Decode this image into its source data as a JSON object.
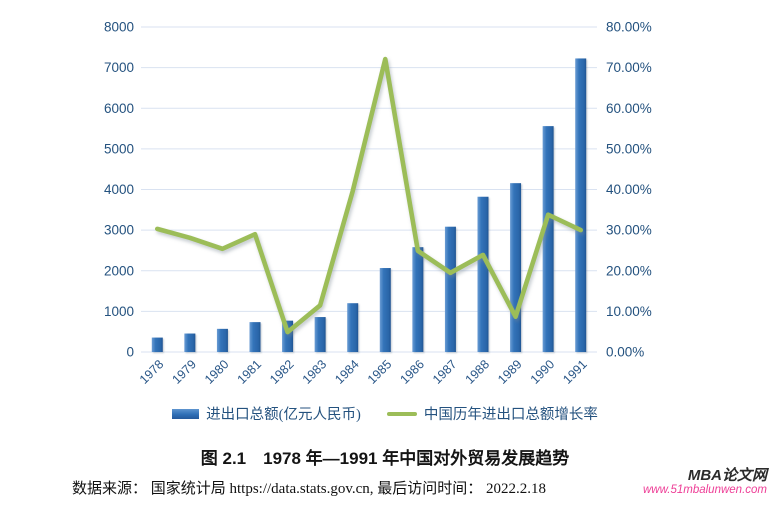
{
  "caption": {
    "title": "图 2.1　1978 年—1991 年中国对外贸易发展趋势"
  },
  "source_note": "数据来源： 国家统计局 https://data.stats.gov.cn,  最后访问时间： 2022.2.18",
  "watermark": {
    "brand": "MBA论文网",
    "url": "www.51mbalunwen.com"
  },
  "chart_data": {
    "type": "bar+line combo",
    "title": "图 2.1　1978 年—1991 年中国对外贸易发展趋势",
    "categories": [
      "1978",
      "1979",
      "1980",
      "1981",
      "1982",
      "1983",
      "1984",
      "1985",
      "1986",
      "1987",
      "1988",
      "1989",
      "1990",
      "1991"
    ],
    "series": [
      {
        "name": "进出口总额(亿元人民币)",
        "chart_type": "bar",
        "axis": "left",
        "values": [
          355.0,
          454.6,
          570.0,
          735.3,
          771.3,
          860.1,
          1201.0,
          2066.7,
          2580.4,
          3084.2,
          3821.8,
          4155.9,
          5560.1,
          7225.8
        ]
      },
      {
        "name": "中国历年进出口总额增长率",
        "chart_type": "line",
        "axis": "right",
        "values_percent": [
          30.3,
          28.1,
          25.4,
          29.0,
          4.9,
          11.5,
          39.6,
          72.1,
          24.9,
          19.5,
          23.9,
          8.7,
          33.8,
          30.0
        ]
      }
    ],
    "left_axis": {
      "min": 0,
      "max": 8000,
      "step": 1000
    },
    "right_axis": {
      "min_percent": 0,
      "max_percent": 80,
      "step_percent": 10,
      "label_format": "0.00%"
    },
    "grid": "horizontal gridlines on, no vertical axis lines",
    "legend_position": "bottom center",
    "colors": {
      "bar": "#2F6FB6",
      "line": "#9CBD58",
      "axis_text": "#24527F",
      "gridline": "#D9E2F1"
    }
  }
}
